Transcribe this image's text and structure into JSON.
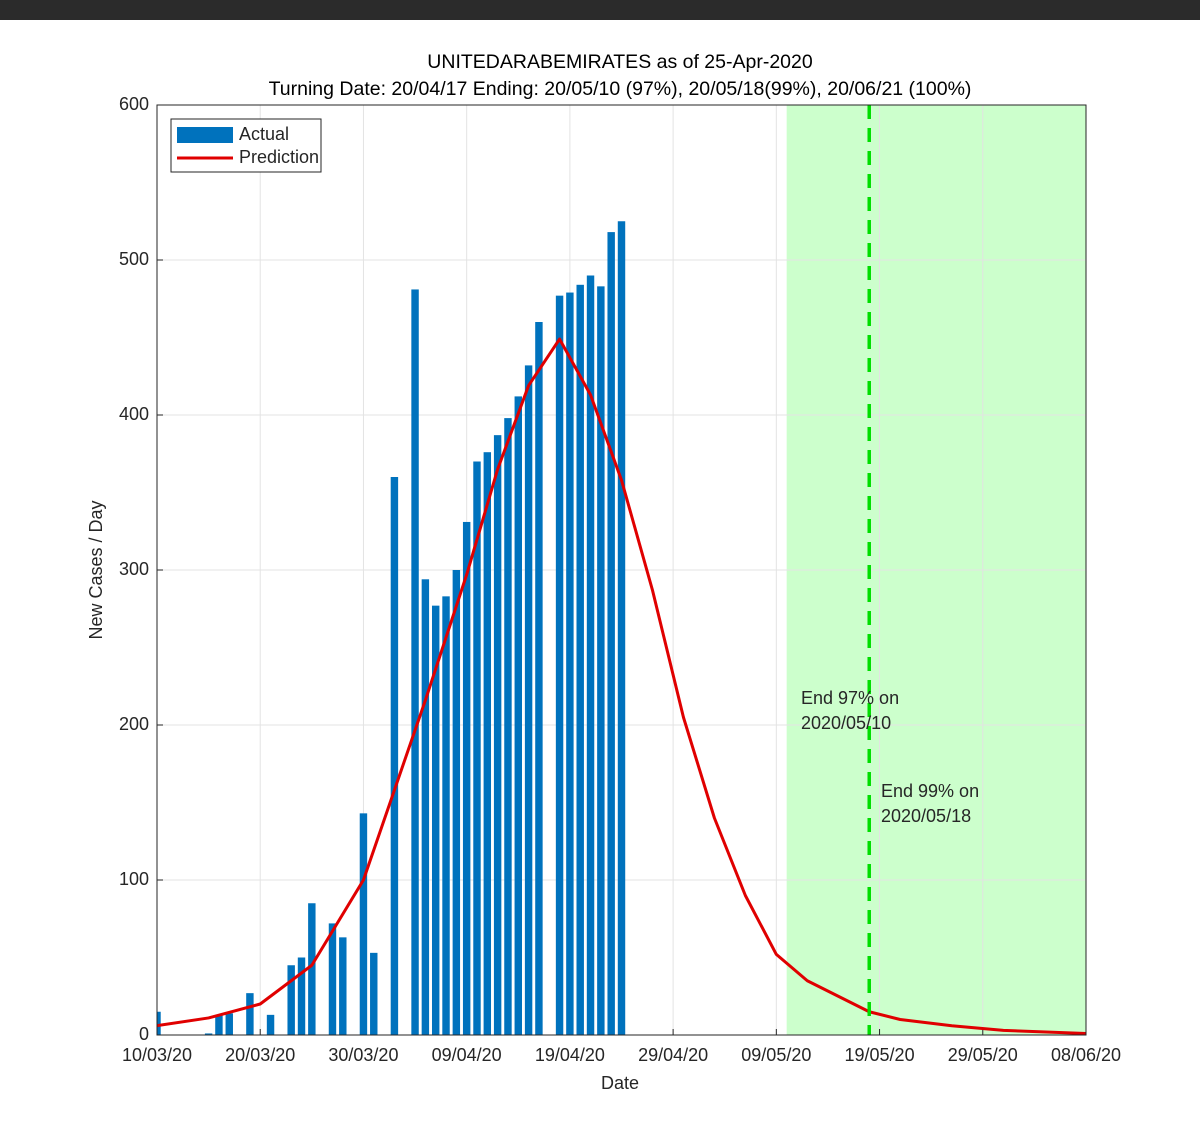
{
  "chart_data": {
    "type": "combo",
    "title": "UNITEDARABEMIRATES as of 25-Apr-2020",
    "subtitle": "Turning Date: 20/04/17  Ending: 20/05/10 (97%), 20/05/18(99%), 20/06/21 (100%)",
    "xlabel": "Date",
    "ylabel": "New Cases / Day",
    "xlim": [
      "2020-03-10",
      "2020-06-08"
    ],
    "xticks": [
      {
        "value": "2020-03-10",
        "label": "10/03/20"
      },
      {
        "value": "2020-03-20",
        "label": "20/03/20"
      },
      {
        "value": "2020-03-30",
        "label": "30/03/20"
      },
      {
        "value": "2020-04-09",
        "label": "09/04/20"
      },
      {
        "value": "2020-04-19",
        "label": "19/04/20"
      },
      {
        "value": "2020-04-29",
        "label": "29/04/20"
      },
      {
        "value": "2020-05-09",
        "label": "09/05/20"
      },
      {
        "value": "2020-05-19",
        "label": "19/05/20"
      },
      {
        "value": "2020-05-29",
        "label": "29/05/20"
      },
      {
        "value": "2020-06-08",
        "label": "08/06/20"
      }
    ],
    "ylim": [
      0,
      600
    ],
    "yticks": [
      0,
      100,
      200,
      300,
      400,
      500,
      600
    ],
    "grid": true,
    "legend": "top-left",
    "series": [
      {
        "name": "Actual",
        "type": "bar",
        "color": "#0072bd",
        "x": [
          "2020-03-10",
          "2020-03-15",
          "2020-03-16",
          "2020-03-17",
          "2020-03-19",
          "2020-03-21",
          "2020-03-23",
          "2020-03-24",
          "2020-03-25",
          "2020-03-27",
          "2020-03-28",
          "2020-03-30",
          "2020-03-31",
          "2020-04-02",
          "2020-04-04",
          "2020-04-05",
          "2020-04-06",
          "2020-04-07",
          "2020-04-08",
          "2020-04-09",
          "2020-04-10",
          "2020-04-11",
          "2020-04-12",
          "2020-04-13",
          "2020-04-14",
          "2020-04-15",
          "2020-04-16",
          "2020-04-18",
          "2020-04-19",
          "2020-04-20",
          "2020-04-21",
          "2020-04-22",
          "2020-04-23",
          "2020-04-24"
        ],
        "values": [
          15,
          1,
          13,
          14,
          27,
          13,
          45,
          50,
          85,
          72,
          63,
          143,
          53,
          360,
          481,
          294,
          277,
          283,
          300,
          331,
          370,
          376,
          387,
          398,
          412,
          432,
          460,
          477,
          479,
          484,
          490,
          483,
          518,
          525
        ]
      },
      {
        "name": "Prediction",
        "type": "line",
        "color": "#e00000",
        "x": [
          "2020-03-10",
          "2020-03-15",
          "2020-03-20",
          "2020-03-25",
          "2020-03-30",
          "2020-04-02",
          "2020-04-05",
          "2020-04-09",
          "2020-04-12",
          "2020-04-15",
          "2020-04-18",
          "2020-04-21",
          "2020-04-24",
          "2020-04-27",
          "2020-04-30",
          "2020-05-03",
          "2020-05-06",
          "2020-05-09",
          "2020-05-12",
          "2020-05-15",
          "2020-05-18",
          "2020-05-21",
          "2020-05-26",
          "2020-05-31",
          "2020-06-08"
        ],
        "values": [
          6,
          11,
          20,
          45,
          100,
          158,
          216,
          297,
          365,
          419,
          449,
          413,
          358,
          287,
          205,
          140,
          90,
          52,
          35,
          25,
          15,
          10,
          6,
          3,
          1
        ]
      }
    ],
    "shaded_range": [
      "2020-05-10",
      "2020-06-08"
    ],
    "vline": "2020-05-18",
    "annotations": [
      [
        "End 97% on",
        "2020/05/10"
      ],
      [
        "End 99% on",
        "2020/05/18"
      ]
    ]
  }
}
